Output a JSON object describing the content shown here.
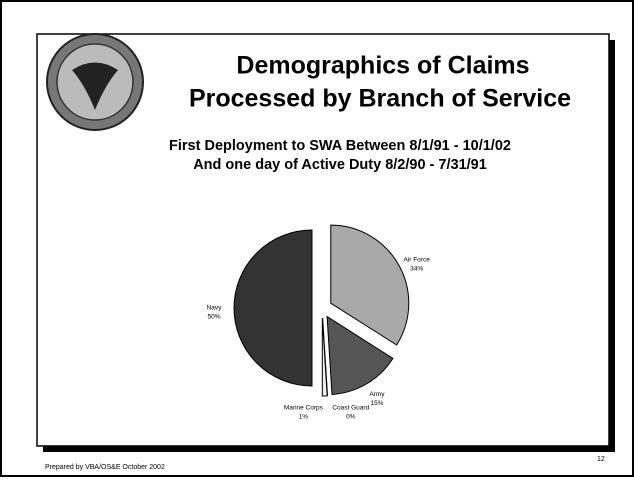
{
  "chart_data": {
    "type": "pie",
    "title": [
      "Demographics of Claims",
      "Processed by Branch of Service"
    ],
    "subtitle": [
      "First Deployment to SWA Between 8/1/91 - 10/1/02",
      "And one day of Active Duty 8/2/90 - 7/31/91"
    ],
    "categories": [
      "Air Force",
      "Army",
      "Coast Guard",
      "Marine Corps",
      "Navy"
    ],
    "values": [
      34,
      15,
      0,
      1,
      50
    ],
    "value_labels": [
      "34%",
      "15%",
      "0%",
      "1%",
      "50%"
    ],
    "colors": [
      "#a9a9a9",
      "#555555",
      "#ffffff",
      "#eeeeee",
      "#333333"
    ]
  },
  "footer": "Prepared by VBA/OS&E October 2002",
  "page_number": "12"
}
